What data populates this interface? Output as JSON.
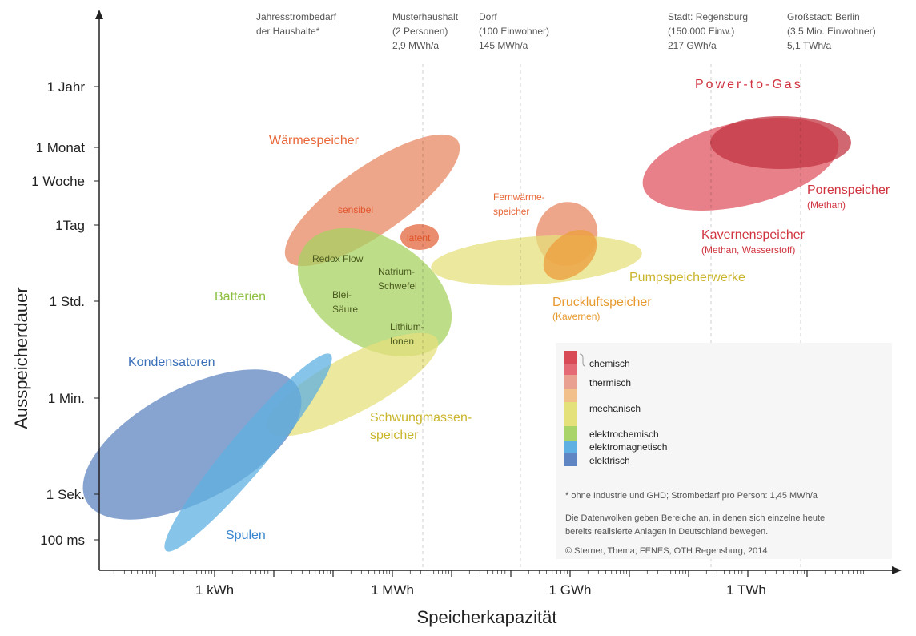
{
  "chart_data": {
    "type": "scatter",
    "xlabel": "Speicherkapazität",
    "ylabel": "Ausspeicherdauer",
    "x_ticks": [
      "1 kWh",
      "1 MWh",
      "1 GWh",
      "1 TWh"
    ],
    "y_ticks": [
      "1 Jahr",
      "1 Monat",
      "1 Woche",
      "1Tag",
      "1 Std.",
      "1 Min.",
      "1 Sek.",
      "100 ms"
    ],
    "reference_lines": [
      {
        "label": [
          "Jahresstrombedarf",
          "der Haushalte*"
        ],
        "x": ""
      },
      {
        "label": [
          "Musterhaushalt",
          "(2 Personen)",
          "2,9 MWh/a"
        ],
        "x": "2,9 MWh"
      },
      {
        "label": [
          "Dorf",
          "(100 Einwohner)",
          "145 MWh/a"
        ],
        "x": "145 MWh"
      },
      {
        "label": [
          "Stadt: Regensburg",
          "(150.000 Einw.)",
          "217 GWh/a"
        ],
        "x": "217 GWh"
      },
      {
        "label": [
          "Großstadt: Berlin",
          "(3,5 Mio. Einwohner)",
          "5,1 TWh/a"
        ],
        "x": "5,1 TWh"
      }
    ],
    "categories": [
      {
        "name": "Power-to-Gas",
        "group": "chemisch",
        "color": "#d0343f"
      },
      {
        "name": "Porenspeicher",
        "sub": "(Methan)",
        "group": "chemisch",
        "color": "#d0343f"
      },
      {
        "name": "Kavernenspeicher",
        "sub": "(Methan, Wasserstoff)",
        "group": "chemisch",
        "color": "#d0343f"
      },
      {
        "name": "Wärmespeicher",
        "group": "thermisch",
        "color": "#e8683a",
        "regions": [
          "sensibel",
          "latent"
        ]
      },
      {
        "name": "Fernwärme-",
        "name2": "speicher",
        "group": "thermisch",
        "color": "#e8683a"
      },
      {
        "name": "Druckluftspeicher",
        "sub": "(Kavernen)",
        "group": "mechanisch",
        "color": "#e69a2e"
      },
      {
        "name": "Pumpspeicherwerke",
        "group": "mechanisch",
        "color": "#c9b52b"
      },
      {
        "name": "Schwungmassen-",
        "name2": "speicher",
        "group": "mechanisch",
        "color": "#c9b52b"
      },
      {
        "name": "Batterien",
        "group": "elektrochemisch",
        "color": "#8cbf3f",
        "regions": [
          "Redox Flow",
          "Natrium-Schwefel",
          "Blei-Säure",
          "Lithium-Ionen"
        ]
      },
      {
        "name": "Spulen",
        "group": "elektromagnetisch",
        "color": "#3a86d0"
      },
      {
        "name": "Kondensatoren",
        "group": "elektrisch",
        "color": "#3a6fb8"
      }
    ],
    "legend": [
      "chemisch",
      "thermisch",
      "mechanisch",
      "elektrochemisch",
      "elektromagnetisch",
      "elektrisch"
    ],
    "legend_colors": [
      "#d84a55",
      "#e9a090",
      "#f2c08a",
      "#e4e07a",
      "#a9d46a",
      "#5fb0e2",
      "#5f86c2"
    ],
    "notes": [
      "* ohne Industrie und GHD; Strombedarf pro Person: 1,45 MWh/a",
      "Die Datenwolken geben Bereiche an, in denen sich einzelne heute",
      "bereits realisierte Anlagen in Deutschland bewegen.",
      "© Sterner, Thema; FENES, OTH Regensburg, 2014"
    ]
  }
}
